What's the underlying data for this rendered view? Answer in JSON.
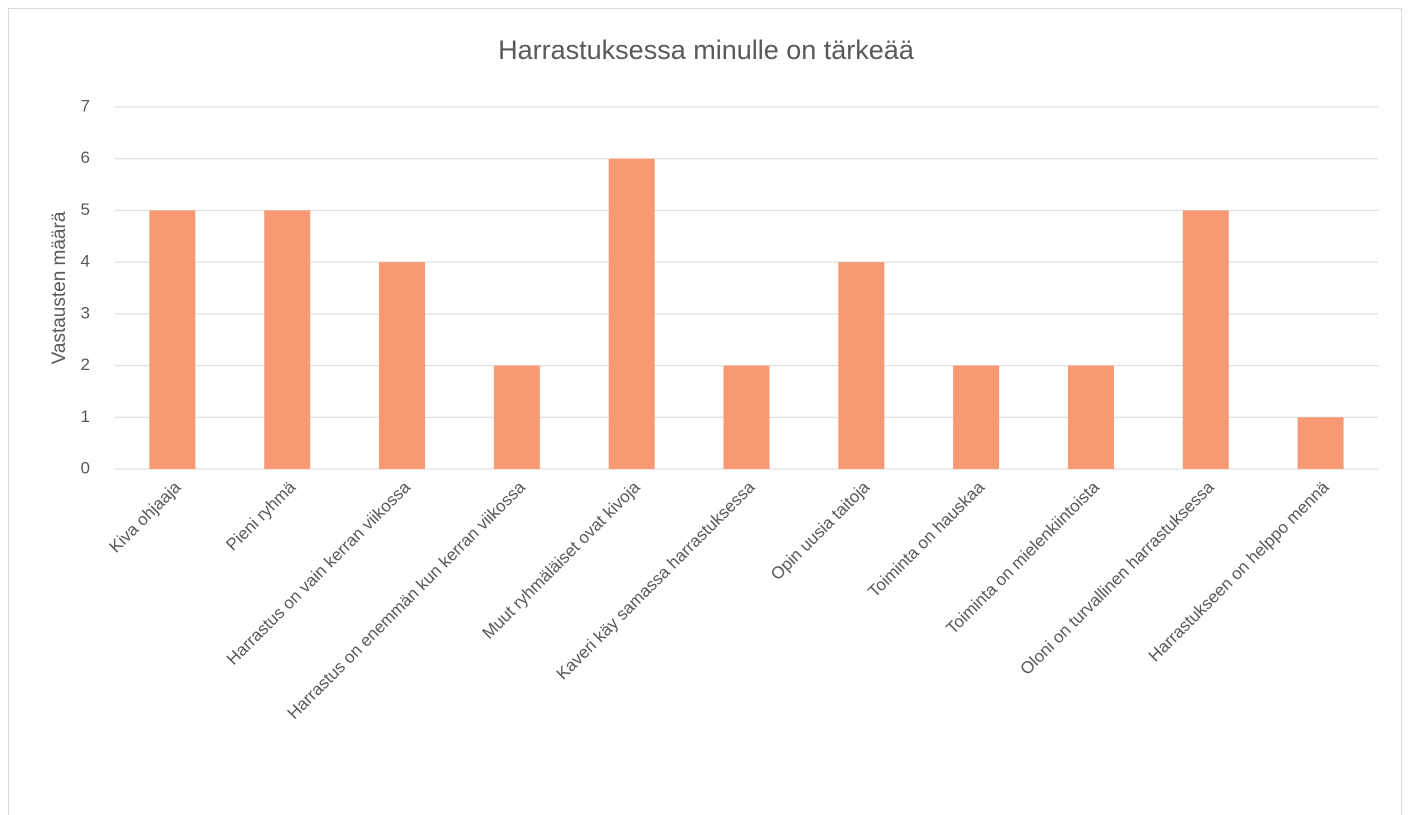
{
  "chart_data": {
    "type": "bar",
    "title": "Harrastuksessa minulle on tärkeää",
    "y_label": "Vastausten määrä",
    "categories": [
      "Kiva ohjaaja",
      "Pieni ryhmä",
      "Harrastus on vain kerran viikossa",
      "Harrastus on enemmän kun kerran viikossa",
      "Muut ryhmäläiset ovat kivoja",
      "Kaveri käy samassa harrastuksessa",
      "Opin uusia taitoja",
      "Toiminta on hauskaa",
      "Toiminta on mielenkiintoista",
      "Oloni on turvallinen harrastuksessa",
      "Harrastukseen on helppo mennä"
    ],
    "values": [
      5,
      5,
      4,
      2,
      6,
      2,
      4,
      2,
      2,
      5,
      1
    ],
    "color": "#f79a73",
    "ylim": [
      0,
      7
    ],
    "yticks": [
      0,
      1,
      2,
      3,
      4,
      5,
      6,
      7
    ],
    "grid": true
  }
}
